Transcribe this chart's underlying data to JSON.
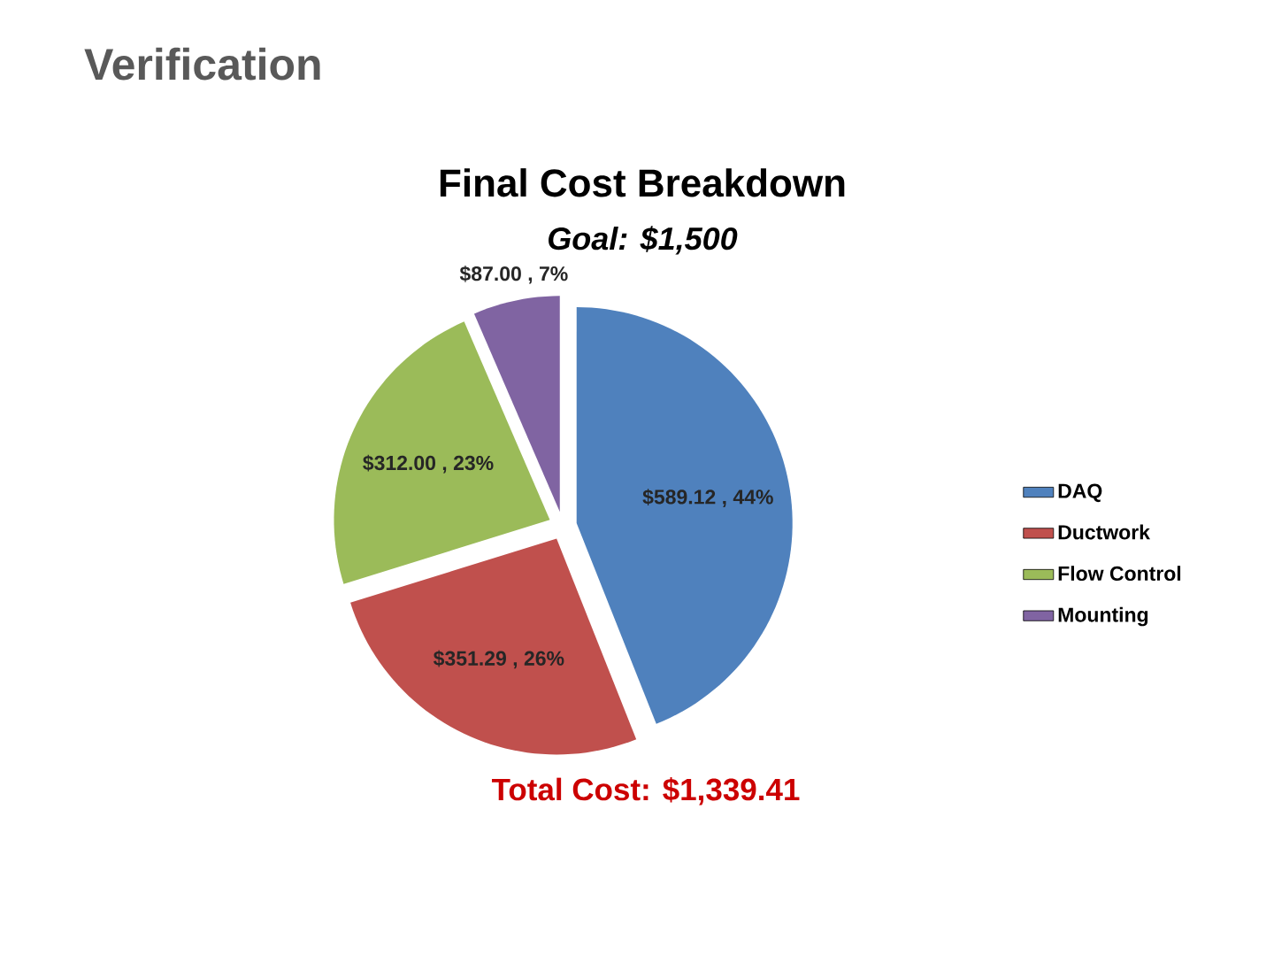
{
  "chart_data": {
    "type": "pie",
    "title": "Final Cost Breakdown",
    "subtitle": "Goal: $1,500",
    "categories": [
      "DAQ",
      "Ductwork",
      "Flow Control",
      "Mounting"
    ],
    "values": [
      589.12,
      351.29,
      312.0,
      87.0
    ],
    "colors": [
      "#4f81bd",
      "#c0504d",
      "#9bbb59",
      "#8064a2"
    ],
    "value_labels": [
      "$589.12 , 44%",
      "$351.29 , 26%",
      "$312.00 , 23%",
      "$87.00 , 7%"
    ],
    "legend": "right",
    "annotations": [
      "Verification",
      "Total Cost: $1,339.41"
    ]
  }
}
